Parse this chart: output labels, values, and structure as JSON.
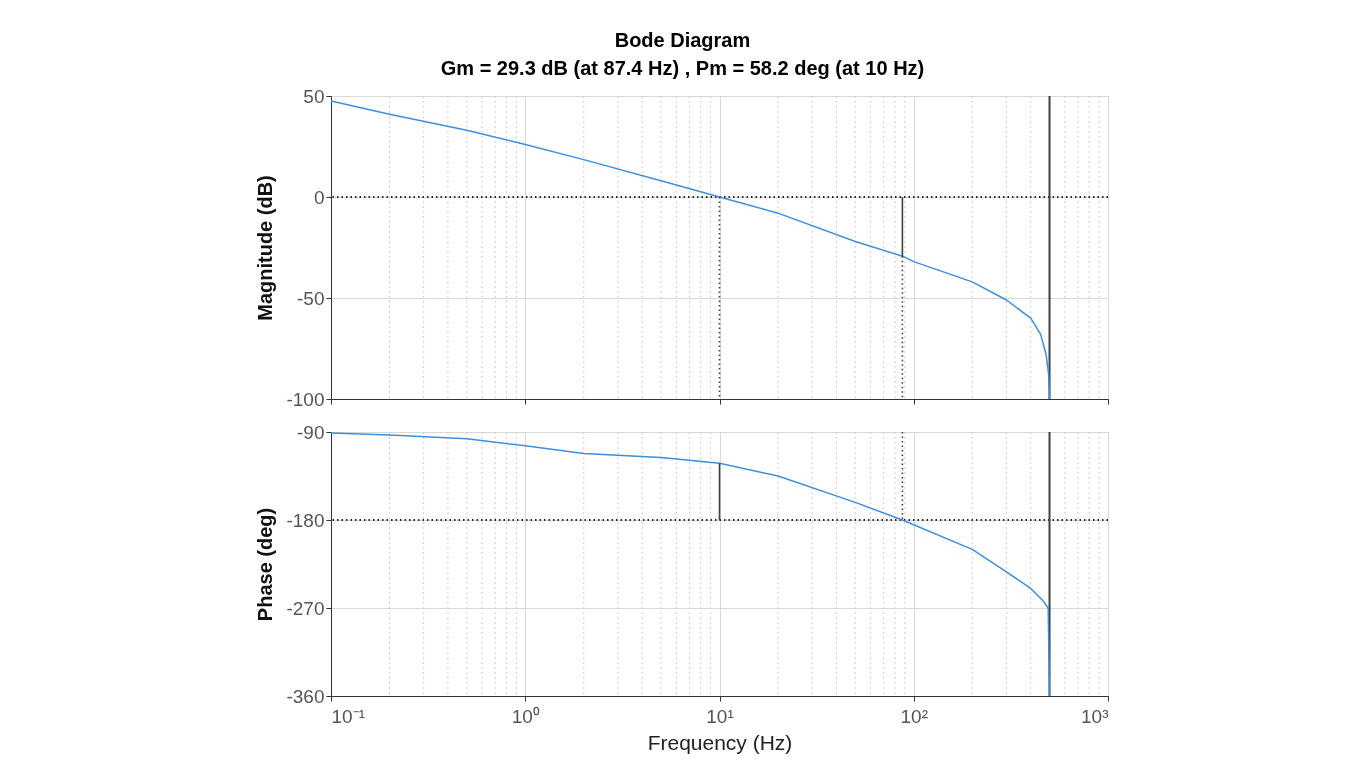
{
  "chart_data": [
    {
      "type": "line",
      "title": "Bode Diagram",
      "subtitle": "Gm = 29.3 dB (at 87.4 Hz) ,  Pm = 58.2 deg (at 10 Hz)",
      "ylabel": "Magnitude (dB)",
      "series": [
        {
          "color": "#3f8fd8",
          "x": [
            0.1,
            0.2,
            0.5,
            1,
            2,
            5,
            10,
            20,
            50,
            87.4,
            100,
            200,
            300,
            400,
            450,
            480,
            495,
            500
          ],
          "values": [
            47.5,
            41,
            33,
            26,
            18.5,
            8,
            0,
            -8,
            -22,
            -29.3,
            -32,
            -42,
            -51,
            -60,
            -68,
            -78,
            -88,
            -100
          ]
        },
        {
          "color": "#404040",
          "line_style": "solid",
          "x": [
            87.4,
            87.4
          ],
          "values": [
            0,
            -29.3
          ]
        },
        {
          "color": "#404040",
          "line_style": "dotted",
          "x": [
            10,
            10
          ],
          "values": [
            0,
            -100
          ]
        },
        {
          "color": "#404040",
          "line_style": "dotted",
          "x": [
            87.4,
            87.4
          ],
          "values": [
            -29.3,
            -100
          ]
        }
      ],
      "xlim": [
        0.1,
        1000
      ],
      "xticks": [
        {
          "value": 0.1,
          "label": null
        },
        {
          "value": 1,
          "label": null
        },
        {
          "value": 10,
          "label": null
        },
        {
          "value": 100,
          "label": null
        },
        {
          "value": 1000,
          "label": null
        }
      ],
      "ylim": [
        -100,
        50
      ],
      "yticks": [
        -100,
        -50,
        0,
        50
      ],
      "log": "x",
      "grid": true,
      "tick_labels": "y",
      "ref_lines": [
        {
          "axis": "y",
          "value": 0,
          "color": "#262626",
          "line_style": "dotted"
        },
        {
          "axis": "x",
          "value": 500,
          "color": "#404040",
          "line_style": "solid"
        }
      ]
    },
    {
      "type": "line",
      "xlabel": "Frequency  (Hz)",
      "ylabel": "Phase (deg)",
      "series": [
        {
          "color": "#3f8fd8",
          "x": [
            0.1,
            0.2,
            0.5,
            1,
            2,
            5,
            10,
            20,
            50,
            87.4,
            200,
            300,
            400,
            460,
            492,
            500
          ],
          "values": [
            -91,
            -93,
            -97,
            -104,
            -112,
            -116,
            -122,
            -135,
            -162,
            -180,
            -210,
            -233,
            -250,
            -262,
            -270,
            -360
          ]
        },
        {
          "color": "#404040",
          "line_style": "solid",
          "x": [
            10,
            10
          ],
          "values": [
            -180,
            -122
          ]
        },
        {
          "color": "#404040",
          "line_style": "dotted",
          "x": [
            87.4,
            87.4
          ],
          "values": [
            -90,
            -180
          ]
        }
      ],
      "xlim": [
        0.1,
        1000
      ],
      "xticks": [
        {
          "value": 0.1,
          "label": "10⁻¹"
        },
        {
          "value": 1,
          "label": "10⁰"
        },
        {
          "value": 10,
          "label": "10¹"
        },
        {
          "value": 100,
          "label": "10²"
        },
        {
          "value": 1000,
          "label": "10³"
        }
      ],
      "ylim": [
        -360,
        -90
      ],
      "yticks": [
        -360,
        -270,
        -180,
        -90
      ],
      "log": "x",
      "grid": true,
      "ref_lines": [
        {
          "axis": "y",
          "value": -180,
          "color": "#262626",
          "line_style": "dotted"
        },
        {
          "axis": "x",
          "value": 500,
          "color": "#404040",
          "line_style": "solid"
        }
      ]
    }
  ]
}
